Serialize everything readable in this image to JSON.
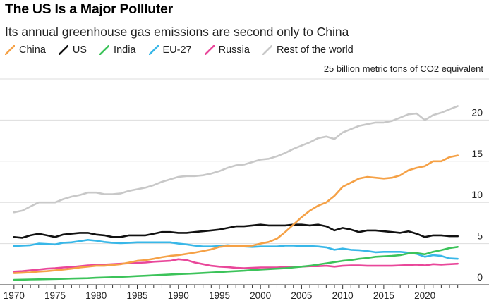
{
  "header": {
    "title": "The US Is a Major Pollluter",
    "subtitle": "Its annual greenhouse gas emissions are second only to China"
  },
  "chart_data": {
    "type": "line",
    "title": "The US Is a Major Pollluter",
    "subtitle": "Its annual greenhouse gas emissions are second only to China",
    "unit_note": "25 billion metric tons of CO2 equivalent",
    "x": [
      1970,
      1971,
      1972,
      1973,
      1974,
      1975,
      1976,
      1977,
      1978,
      1979,
      1980,
      1981,
      1982,
      1983,
      1984,
      1985,
      1986,
      1987,
      1988,
      1989,
      1990,
      1991,
      1992,
      1993,
      1994,
      1995,
      1996,
      1997,
      1998,
      1999,
      2000,
      2001,
      2002,
      2003,
      2004,
      2005,
      2006,
      2007,
      2008,
      2009,
      2010,
      2011,
      2012,
      2013,
      2014,
      2015,
      2016,
      2017,
      2018,
      2019,
      2020,
      2021,
      2022,
      2023,
      2024
    ],
    "xlim": [
      1969.5,
      2024.8
    ],
    "ylim": [
      0,
      25
    ],
    "x_ticks": [
      1970,
      1975,
      1980,
      1985,
      1990,
      1995,
      2000,
      2005,
      2010,
      2015,
      2020
    ],
    "y_ticks": [
      0,
      5,
      10,
      15,
      20,
      25
    ],
    "y_tick_labels": [
      "0",
      "5",
      "10",
      "15",
      "20",
      "25"
    ],
    "grid": "horizontal",
    "legend_position": "top",
    "series": [
      {
        "name": "China",
        "color": "#f5a146",
        "values": [
          1.4,
          1.45,
          1.5,
          1.6,
          1.65,
          1.75,
          1.85,
          1.95,
          2.1,
          2.2,
          2.3,
          2.3,
          2.4,
          2.5,
          2.7,
          2.9,
          3.0,
          3.15,
          3.35,
          3.5,
          3.6,
          3.75,
          3.9,
          4.1,
          4.3,
          4.6,
          4.7,
          4.7,
          4.7,
          4.75,
          5.0,
          5.2,
          5.6,
          6.4,
          7.3,
          8.2,
          9.0,
          9.6,
          10.0,
          10.8,
          11.9,
          12.4,
          12.9,
          13.1,
          13.0,
          12.9,
          13.0,
          13.3,
          13.9,
          14.2,
          14.4,
          15.0,
          15.0,
          15.5,
          15.7
        ]
      },
      {
        "name": "US",
        "color": "#111111",
        "values": [
          5.8,
          5.7,
          6.0,
          6.2,
          6.0,
          5.8,
          6.1,
          6.2,
          6.3,
          6.3,
          6.1,
          6.0,
          5.8,
          5.8,
          6.0,
          6.0,
          6.0,
          6.2,
          6.4,
          6.4,
          6.3,
          6.3,
          6.4,
          6.5,
          6.6,
          6.7,
          6.9,
          7.1,
          7.1,
          7.2,
          7.3,
          7.2,
          7.2,
          7.2,
          7.3,
          7.3,
          7.2,
          7.3,
          7.1,
          6.6,
          6.9,
          6.7,
          6.4,
          6.6,
          6.6,
          6.5,
          6.4,
          6.3,
          6.5,
          6.2,
          5.8,
          6.0,
          6.0,
          5.9,
          5.9
        ]
      },
      {
        "name": "India",
        "color": "#3cc35a",
        "values": [
          0.6,
          0.62,
          0.64,
          0.66,
          0.68,
          0.7,
          0.72,
          0.75,
          0.78,
          0.8,
          0.85,
          0.88,
          0.92,
          0.96,
          1.0,
          1.05,
          1.1,
          1.15,
          1.2,
          1.25,
          1.3,
          1.33,
          1.38,
          1.43,
          1.48,
          1.53,
          1.6,
          1.65,
          1.7,
          1.78,
          1.85,
          1.9,
          1.95,
          2.0,
          2.1,
          2.2,
          2.3,
          2.45,
          2.6,
          2.75,
          2.9,
          3.0,
          3.15,
          3.25,
          3.4,
          3.45,
          3.5,
          3.6,
          3.8,
          3.85,
          3.7,
          4.0,
          4.2,
          4.45,
          4.6
        ]
      },
      {
        "name": "EU-27",
        "color": "#38b7e8",
        "values": [
          4.7,
          4.75,
          4.8,
          5.0,
          4.95,
          4.9,
          5.1,
          5.15,
          5.3,
          5.45,
          5.35,
          5.2,
          5.1,
          5.05,
          5.1,
          5.15,
          5.15,
          5.15,
          5.15,
          5.15,
          5.0,
          4.9,
          4.75,
          4.65,
          4.65,
          4.7,
          4.8,
          4.7,
          4.65,
          4.6,
          4.65,
          4.65,
          4.65,
          4.75,
          4.75,
          4.7,
          4.7,
          4.65,
          4.55,
          4.25,
          4.4,
          4.25,
          4.2,
          4.1,
          3.95,
          4.0,
          4.0,
          4.0,
          3.9,
          3.75,
          3.4,
          3.6,
          3.5,
          3.2,
          3.15
        ]
      },
      {
        "name": "Russia",
        "color": "#e9479a",
        "values": [
          1.6,
          1.65,
          1.75,
          1.85,
          1.95,
          2.0,
          2.1,
          2.15,
          2.25,
          2.35,
          2.4,
          2.45,
          2.5,
          2.55,
          2.6,
          2.65,
          2.7,
          2.8,
          2.85,
          2.9,
          3.1,
          3.0,
          2.7,
          2.5,
          2.3,
          2.2,
          2.15,
          2.05,
          2.0,
          2.05,
          2.1,
          2.1,
          2.1,
          2.15,
          2.2,
          2.2,
          2.25,
          2.25,
          2.3,
          2.2,
          2.3,
          2.35,
          2.35,
          2.3,
          2.3,
          2.3,
          2.3,
          2.35,
          2.4,
          2.45,
          2.35,
          2.5,
          2.45,
          2.5,
          2.55
        ]
      },
      {
        "name": "Rest of the world",
        "color": "#c8c8c8",
        "values": [
          8.8,
          9.0,
          9.5,
          10.0,
          10.0,
          10.0,
          10.4,
          10.7,
          10.9,
          11.2,
          11.2,
          11.0,
          11.0,
          11.1,
          11.4,
          11.6,
          11.8,
          12.1,
          12.5,
          12.8,
          13.1,
          13.2,
          13.2,
          13.3,
          13.5,
          13.8,
          14.2,
          14.5,
          14.6,
          14.9,
          15.2,
          15.3,
          15.6,
          16.0,
          16.5,
          16.9,
          17.3,
          17.8,
          18.0,
          17.7,
          18.5,
          18.9,
          19.3,
          19.5,
          19.7,
          19.7,
          19.9,
          20.3,
          20.7,
          20.8,
          20.0,
          20.6,
          20.9,
          21.3,
          21.7
        ]
      }
    ]
  }
}
